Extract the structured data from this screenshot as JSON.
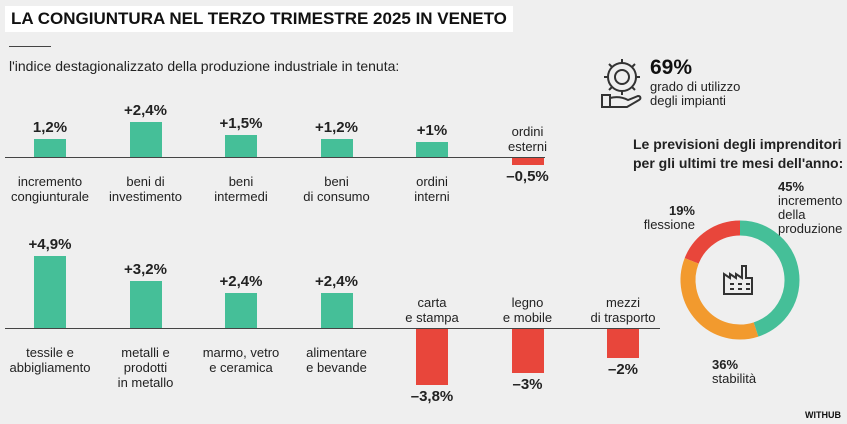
{
  "title": "LA CONGIUNTURA NEL TERZO TRIMESTRE 2025 IN VENETO",
  "subtitle": "l'indice destagionalizzato della produzione industriale in tenuta:",
  "stat": {
    "value": "69%",
    "label": "grado di utilizzo\ndegli impianti"
  },
  "credit": "WITHUB",
  "chart_data": [
    {
      "type": "bar",
      "categories": [
        "incremento\ncongiunturale",
        "beni di\ninvestimento",
        "beni\nintermedi",
        "beni\ndi consumo",
        "ordini\ninterni",
        "ordini\nesterni"
      ],
      "values": [
        1.2,
        2.4,
        1.5,
        1.2,
        1,
        -0.5
      ],
      "value_labels": [
        "1,2%",
        "+2,4%",
        "+1,5%",
        "+1,2%",
        "+1%",
        "–0,5%"
      ],
      "positive_color": "#45bf98",
      "negative_color": "#e8463b"
    },
    {
      "type": "bar",
      "categories": [
        "tessile e\nabbigliamento",
        "metalli e\nprodotti\nin metallo",
        "marmo, vetro\ne ceramica",
        "alimentare\ne bevande",
        "carta\ne stampa",
        "legno\ne mobile",
        "mezzi\ndi trasporto"
      ],
      "values": [
        4.9,
        3.2,
        2.4,
        2.4,
        -3.8,
        -3,
        -2
      ],
      "value_labels": [
        "+4,9%",
        "+3,2%",
        "+2,4%",
        "+2,4%",
        "–3,8%",
        "–3%",
        "–2%"
      ],
      "positive_color": "#45bf98",
      "negative_color": "#e8463b"
    },
    {
      "type": "pie",
      "title": "Le previsioni degli imprenditori\nper gli ultimi tre mesi dell'anno:",
      "categories": [
        "incremento\ndella\nproduzione",
        "stabilità",
        "flessione"
      ],
      "values": [
        45,
        36,
        19
      ],
      "value_labels": [
        "45%",
        "36%",
        "19%"
      ],
      "colors": [
        "#45bf98",
        "#f29a2e",
        "#e8463b"
      ]
    }
  ]
}
